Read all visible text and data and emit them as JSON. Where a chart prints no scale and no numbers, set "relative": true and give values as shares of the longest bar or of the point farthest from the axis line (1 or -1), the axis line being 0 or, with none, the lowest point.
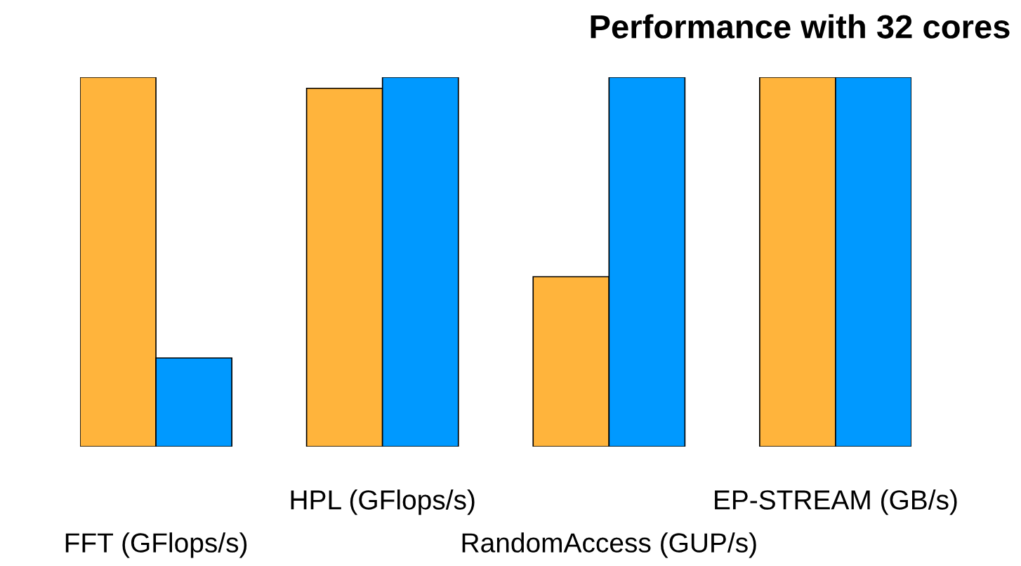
{
  "chart_data": {
    "type": "bar",
    "title": "Performance with 32 cores",
    "relative": true,
    "categories": [
      "FFT (GFlops/s)",
      "HPL (GFlops/s)",
      "RandomAccess (GUP/s)",
      "EP-STREAM (GB/s)"
    ],
    "series": [
      {
        "color": "#ffb43c",
        "values": [
          1.0,
          0.97,
          0.46,
          1.0
        ]
      },
      {
        "color": "#0099ff",
        "values": [
          0.24,
          1.0,
          1.0,
          1.0
        ]
      }
    ],
    "grid": false,
    "legend": false
  }
}
